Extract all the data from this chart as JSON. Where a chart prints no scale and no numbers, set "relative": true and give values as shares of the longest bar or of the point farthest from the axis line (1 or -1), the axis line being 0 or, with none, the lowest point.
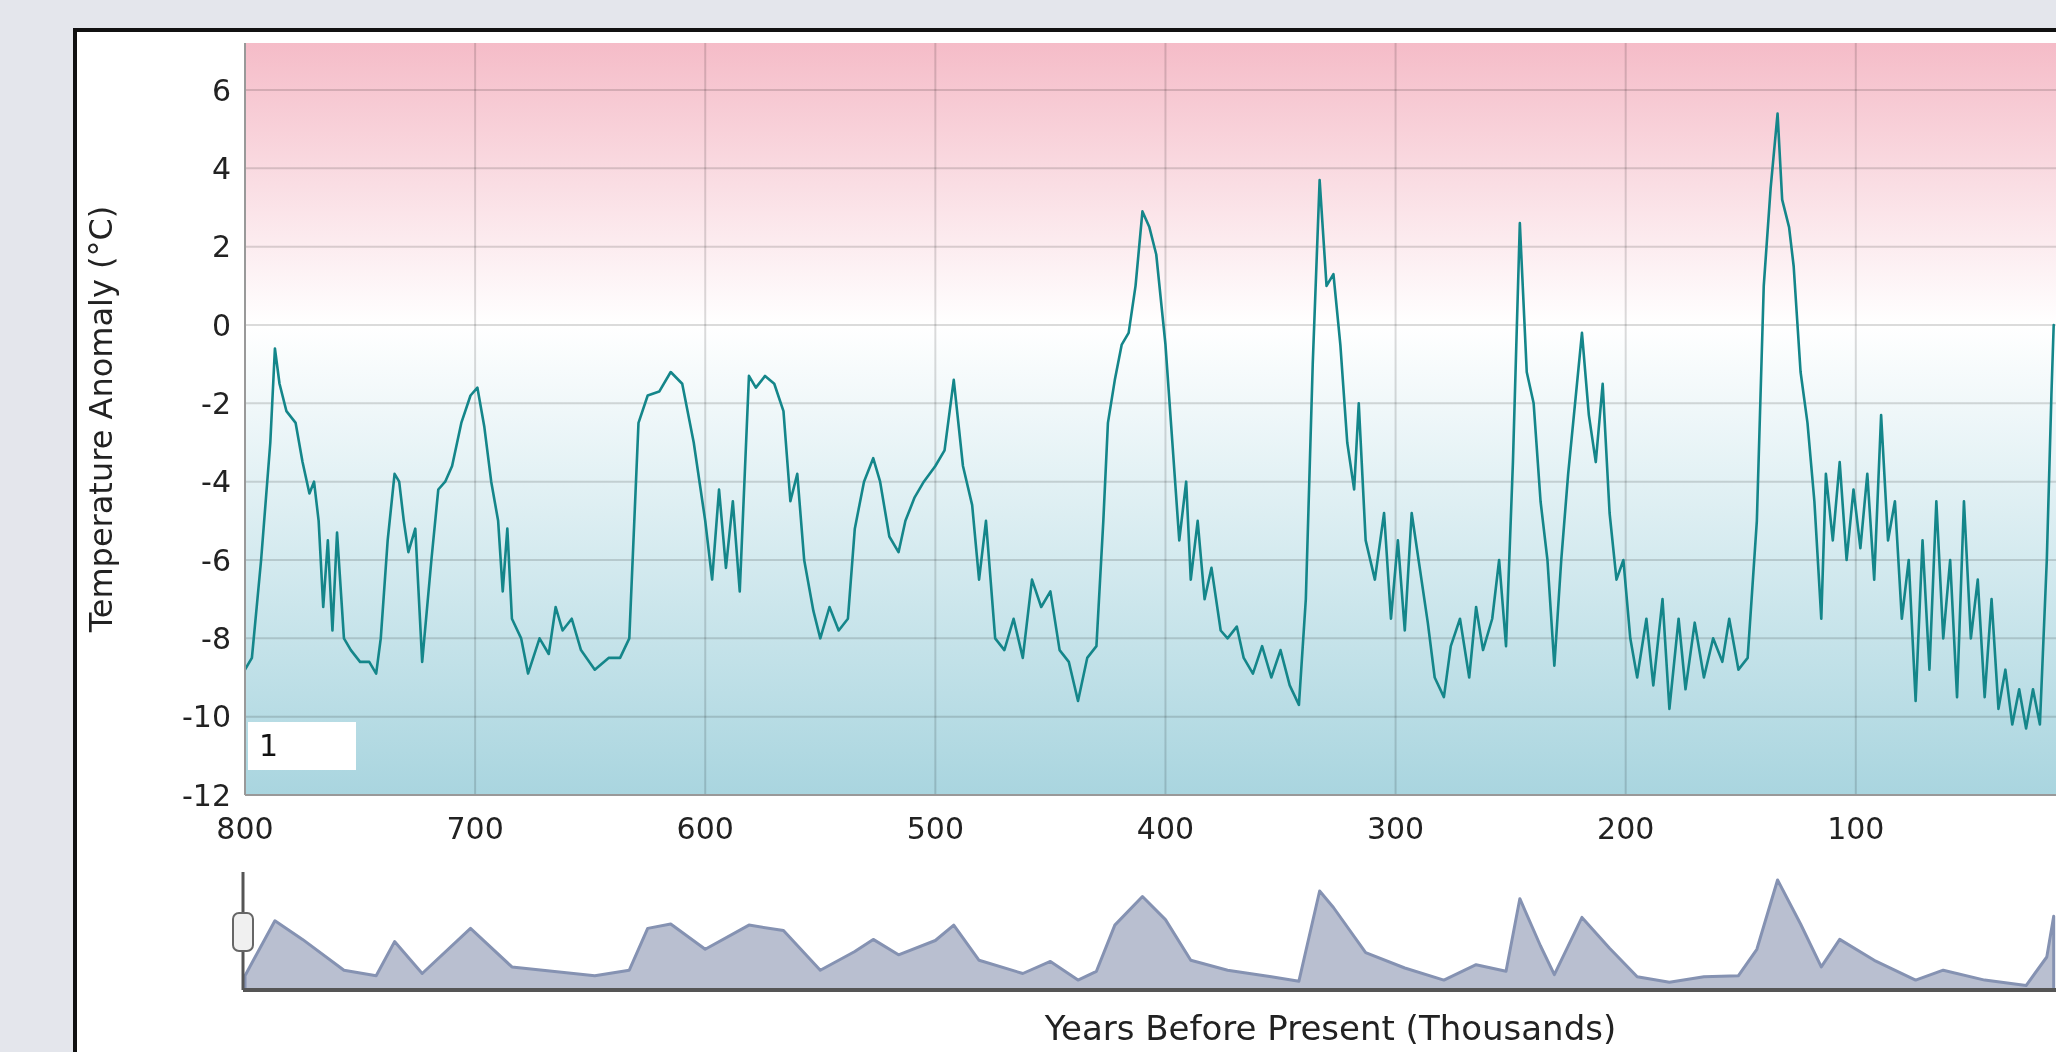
{
  "chart_data": [
    {
      "type": "line",
      "xlabel": "Years Before Present (Thousands)",
      "ylabel": "Temperature Anomaly (°C)",
      "xlim": [
        800,
        13
      ],
      "xticks": [
        800,
        700,
        600,
        500,
        400,
        300,
        200,
        100
      ],
      "ylim": [
        -12,
        7.2
      ],
      "yticks": [
        -12,
        -10,
        -8,
        -6,
        -4,
        -2,
        0,
        2,
        4,
        6
      ],
      "grid": true,
      "annotations": [
        "1"
      ],
      "bands": [
        {
          "axis": "y",
          "from": 0,
          "to": 7.2,
          "color": "#f5bcc8"
        },
        {
          "axis": "y",
          "from": -12,
          "to": 0,
          "color": "#a9d5df"
        }
      ],
      "series": [
        {
          "color": "#14868a",
          "x": [
            800,
            797,
            793,
            789,
            787,
            785,
            782,
            778,
            775,
            772,
            770,
            768,
            766,
            764,
            762,
            760,
            757,
            754,
            750,
            746,
            743,
            741,
            738,
            735,
            733,
            731,
            729,
            726,
            723,
            719,
            716,
            713,
            710,
            706,
            702,
            699,
            696,
            693,
            690,
            688,
            686,
            684,
            680,
            677,
            672,
            668,
            665,
            662,
            658,
            654,
            648,
            642,
            637,
            633,
            629,
            625,
            620,
            615,
            610,
            605,
            600,
            597,
            594,
            591,
            588,
            585,
            581,
            578,
            574,
            570,
            566,
            563,
            560,
            557,
            553,
            550,
            546,
            542,
            538,
            535,
            531,
            527,
            524,
            520,
            516,
            513,
            509,
            505,
            500,
            496,
            492,
            488,
            484,
            481,
            478,
            474,
            470,
            466,
            462,
            458,
            454,
            450,
            446,
            442,
            438,
            434,
            430,
            427,
            425,
            422,
            419,
            416,
            413,
            410,
            407,
            404,
            400,
            397,
            394,
            391,
            389,
            386,
            383,
            380,
            376,
            373,
            369,
            366,
            362,
            358,
            354,
            350,
            346,
            342,
            339,
            336,
            333,
            330,
            327,
            324,
            321,
            318,
            316,
            313,
            309,
            305,
            302,
            299,
            296,
            293,
            290,
            286,
            283,
            279,
            276,
            272,
            268,
            265,
            262,
            258,
            255,
            252,
            249,
            246,
            243,
            240,
            237,
            234,
            231,
            228,
            225,
            222,
            219,
            216,
            213,
            210,
            207,
            204,
            201,
            198,
            195,
            191,
            188,
            184,
            181,
            177,
            174,
            170,
            166,
            162,
            158,
            155,
            151,
            147,
            143,
            140,
            137,
            134,
            132,
            129,
            127,
            124,
            121,
            118,
            115,
            113,
            110,
            107,
            104,
            101,
            98,
            95,
            92,
            89,
            86,
            83,
            80,
            77,
            74,
            71,
            68,
            65,
            62,
            59,
            56,
            53,
            50,
            47,
            44,
            41,
            38,
            35,
            32,
            29,
            26,
            23,
            20,
            17,
            15,
            14
          ],
          "values": [
            -8.8,
            -8.5,
            -6,
            -3,
            -0.6,
            -1.5,
            -2.2,
            -2.5,
            -3.5,
            -4.3,
            -4,
            -5,
            -7.2,
            -5.5,
            -7.8,
            -5.3,
            -8,
            -8.3,
            -8.6,
            -8.6,
            -8.9,
            -8,
            -5.5,
            -3.8,
            -4,
            -5,
            -5.8,
            -5.2,
            -8.6,
            -6,
            -4.2,
            -4,
            -3.6,
            -2.5,
            -1.8,
            -1.6,
            -2.6,
            -4,
            -5,
            -6.8,
            -5.2,
            -7.5,
            -8,
            -8.9,
            -8,
            -8.4,
            -7.2,
            -7.8,
            -7.5,
            -8.3,
            -8.8,
            -8.5,
            -8.5,
            -8,
            -2.5,
            -1.8,
            -1.7,
            -1.2,
            -1.5,
            -3,
            -5,
            -6.5,
            -4.2,
            -6.2,
            -4.5,
            -6.8,
            -1.3,
            -1.6,
            -1.3,
            -1.5,
            -2.2,
            -4.5,
            -3.8,
            -6,
            -7.3,
            -8,
            -7.2,
            -7.8,
            -7.5,
            -5.2,
            -4,
            -3.4,
            -4,
            -5.4,
            -5.8,
            -5,
            -4.4,
            -4,
            -3.6,
            -3.2,
            -1.4,
            -3.6,
            -4.6,
            -6.5,
            -5,
            -8,
            -8.3,
            -7.5,
            -8.5,
            -6.5,
            -7.2,
            -6.8,
            -8.3,
            -8.6,
            -9.6,
            -8.5,
            -8.2,
            -5,
            -2.5,
            -1.4,
            -0.5,
            -0.2,
            1,
            2.9,
            2.5,
            1.8,
            -0.5,
            -3,
            -5.5,
            -4,
            -6.5,
            -5,
            -7,
            -6.2,
            -7.8,
            -8,
            -7.7,
            -8.5,
            -8.9,
            -8.2,
            -9,
            -8.3,
            -9.2,
            -9.7,
            -7,
            -1,
            3.7,
            1,
            1.3,
            -0.5,
            -3,
            -4.2,
            -2,
            -5.5,
            -6.5,
            -4.8,
            -7.5,
            -5.5,
            -7.8,
            -4.8,
            -6,
            -7.6,
            -9,
            -9.5,
            -8.2,
            -7.5,
            -9,
            -7.2,
            -8.3,
            -7.5,
            -6,
            -8.2,
            -3.5,
            2.6,
            -1.2,
            -2,
            -4.5,
            -6,
            -8.7,
            -6,
            -3.8,
            -2,
            -0.2,
            -2.3,
            -3.5,
            -1.5,
            -4.8,
            -6.5,
            -6,
            -8,
            -9,
            -7.5,
            -9.2,
            -7,
            -9.8,
            -7.5,
            -9.3,
            -7.6,
            -9,
            -8,
            -8.6,
            -7.5,
            -8.8,
            -8.5,
            -5,
            1,
            3.5,
            5.4,
            3.2,
            2.5,
            1.5,
            -1.2,
            -2.5,
            -4.5,
            -7.5,
            -3.8,
            -5.5,
            -3.5,
            -6,
            -4.2,
            -5.7,
            -3.8,
            -6.5,
            -2.3,
            -5.5,
            -4.5,
            -7.5,
            -6,
            -9.6,
            -5.5,
            -8.8,
            -4.5,
            -8,
            -6,
            -9.5,
            -4.5,
            -8,
            -6.5,
            -9.5,
            -7,
            -9.8,
            -8.8,
            -10.2,
            -9.3,
            -10.3,
            -9.3,
            -10.2,
            -6,
            -1.8,
            0
          ]
        }
      ]
    },
    {
      "type": "area",
      "relative": true,
      "xlim": [
        800,
        13
      ],
      "tick_labels": false,
      "series": [
        {
          "color": "#8592b2",
          "x": [
            800,
            787,
            775,
            757,
            743,
            735,
            723,
            702,
            684,
            648,
            633,
            625,
            615,
            600,
            581,
            566,
            550,
            535,
            527,
            516,
            500,
            492,
            481,
            462,
            450,
            438,
            430,
            422,
            410,
            400,
            389,
            373,
            354,
            342,
            333,
            327,
            313,
            296,
            279,
            265,
            252,
            246,
            237,
            231,
            219,
            207,
            195,
            181,
            166,
            151,
            143,
            134,
            124,
            115,
            107,
            92,
            74,
            62,
            44,
            26,
            17,
            14
          ],
          "values": [
            0.13,
            0.63,
            0.46,
            0.18,
            0.13,
            0.44,
            0.15,
            0.56,
            0.21,
            0.13,
            0.18,
            0.56,
            0.6,
            0.37,
            0.59,
            0.54,
            0.18,
            0.35,
            0.46,
            0.32,
            0.45,
            0.59,
            0.27,
            0.15,
            0.26,
            0.09,
            0.17,
            0.59,
            0.85,
            0.64,
            0.27,
            0.18,
            0.12,
            0.08,
            0.9,
            0.75,
            0.34,
            0.2,
            0.09,
            0.23,
            0.17,
            0.83,
            0.4,
            0.14,
            0.66,
            0.38,
            0.12,
            0.07,
            0.12,
            0.13,
            0.37,
            1,
            0.6,
            0.21,
            0.46,
            0.27,
            0.09,
            0.18,
            0.09,
            0.04,
            0.3,
            0.67
          ]
        }
      ]
    }
  ]
}
